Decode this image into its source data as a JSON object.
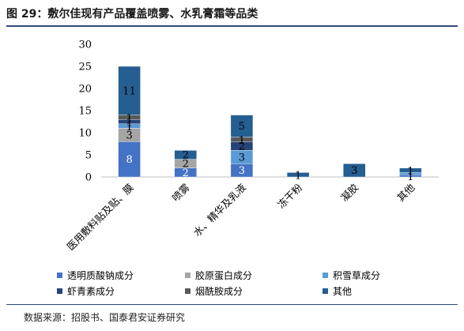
{
  "header": {
    "title": "图 29：敷尔佳现有产品覆盖喷雾、水乳膏霜等品类"
  },
  "footer": {
    "source": "数据来源：招股书、国泰君安证券研究"
  },
  "chart_data": {
    "type": "bar",
    "stacked": true,
    "title": "",
    "xlabel": "",
    "ylabel": "",
    "ylim": [
      0,
      30
    ],
    "yticks": [
      0,
      5,
      10,
      15,
      20,
      25,
      30
    ],
    "grid": false,
    "legend_position": "bottom",
    "categories": [
      "医用敷料贴及贴、膜",
      "喷雾",
      "水、精华及乳液",
      "冻干粉",
      "凝胶",
      "其他"
    ],
    "series": [
      {
        "name": "透明质酸钠成分",
        "color": "#4472c4",
        "values": [
          8,
          2,
          3,
          0,
          0,
          0.5
        ]
      },
      {
        "name": "胶原蛋白成分",
        "color": "#a5a5a5",
        "values": [
          3,
          2,
          0,
          0,
          0,
          0
        ]
      },
      {
        "name": "积雪草成分",
        "color": "#5b9bd5",
        "values": [
          1,
          0,
          3,
          0,
          0,
          0.5
        ]
      },
      {
        "name": "虾青素成分",
        "color": "#264478",
        "values": [
          1,
          0,
          2,
          0,
          0,
          0
        ]
      },
      {
        "name": "烟酰胺成分",
        "color": "#595959",
        "values": [
          1,
          0,
          1,
          0,
          0,
          0
        ]
      },
      {
        "name": "其他",
        "color": "#255e91",
        "values": [
          11,
          2,
          5,
          1,
          3,
          1
        ]
      }
    ],
    "data_labels": [
      {
        "category": 0,
        "series": 0,
        "text": "8"
      },
      {
        "category": 0,
        "series": 1,
        "text": "3"
      },
      {
        "category": 0,
        "series": 2,
        "text": "1"
      },
      {
        "category": 0,
        "series": 3,
        "text": "1"
      },
      {
        "category": 0,
        "series": 4,
        "text": "1"
      },
      {
        "category": 0,
        "series": 5,
        "text": "11"
      },
      {
        "category": 1,
        "series": 0,
        "text": "2"
      },
      {
        "category": 1,
        "series": 1,
        "text": "2"
      },
      {
        "category": 1,
        "series": 5,
        "text": "2"
      },
      {
        "category": 2,
        "series": 0,
        "text": "3"
      },
      {
        "category": 2,
        "series": 2,
        "text": "3"
      },
      {
        "category": 2,
        "series": 3,
        "text": "2"
      },
      {
        "category": 2,
        "series": 4,
        "text": "1"
      },
      {
        "category": 2,
        "series": 5,
        "text": "5"
      },
      {
        "category": 3,
        "series": 5,
        "text": "1"
      },
      {
        "category": 4,
        "series": 5,
        "text": "3"
      },
      {
        "category": 5,
        "series": 0,
        "text": "1"
      },
      {
        "category": 5,
        "series": 5,
        "text": "1"
      }
    ]
  }
}
